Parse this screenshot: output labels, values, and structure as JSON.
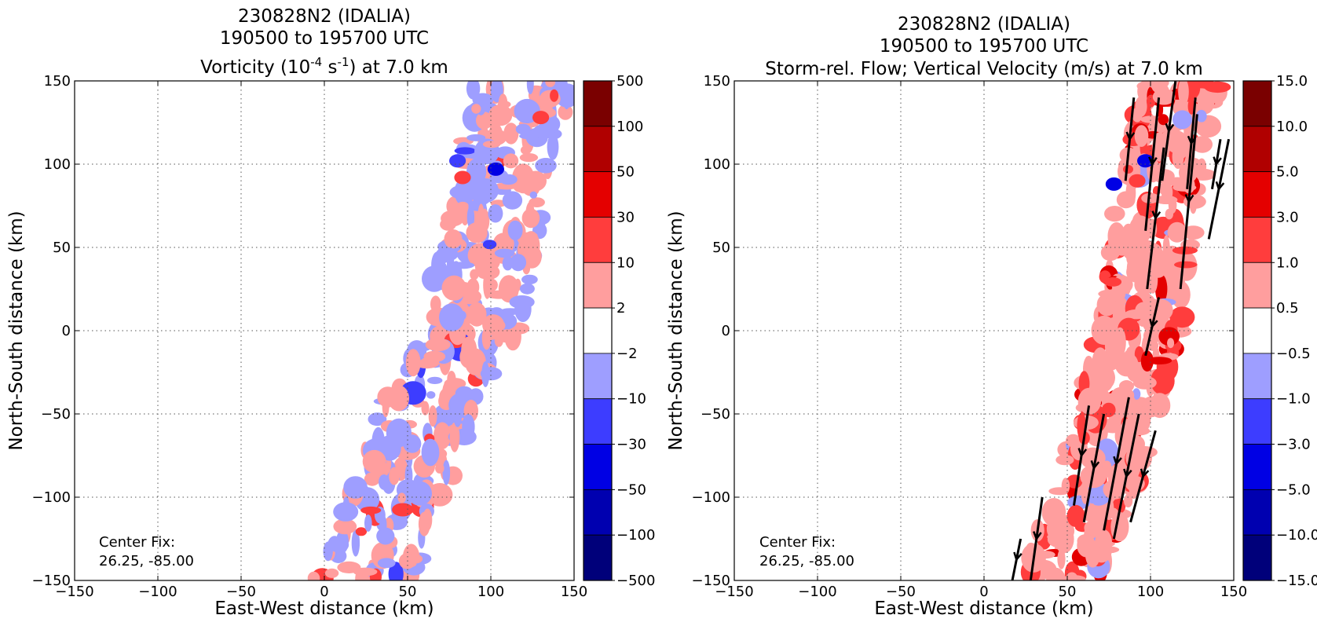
{
  "panels": [
    {
      "title_line1": "230828N2 (IDALIA)",
      "title_line2": "190500 to 195700 UTC",
      "title_line3_pre": "Vorticity (10",
      "title_line3_sup1": "-4",
      "title_line3_mid": " s",
      "title_line3_sup2": "-1",
      "title_line3_post": ") at 7.0 km",
      "xlabel": "East-West distance (km)",
      "ylabel": "North-South distance (km)",
      "annotation_line1": "Center Fix:",
      "annotation_line2": "26.25, -85.00",
      "colorbar_labels": [
        "500",
        "100",
        "50",
        "30",
        "10",
        "2",
        "−2",
        "−10",
        "−30",
        "−50",
        "−100",
        "−500"
      ]
    },
    {
      "title_line1": "230828N2 (IDALIA)",
      "title_line2": "190500 to 195700 UTC",
      "title_line3": "Storm-rel. Flow; Vertical Velocity (m/s) at 7.0 km",
      "xlabel": "East-West distance (km)",
      "ylabel": "North-South distance (km)",
      "annotation_line1": "Center Fix:",
      "annotation_line2": "26.25, -85.00",
      "colorbar_labels": [
        "15.0",
        "10.0",
        "5.0",
        "3.0",
        "1.0",
        "0.5",
        "−0.5",
        "−1.0",
        "−3.0",
        "−5.0",
        "−10.0",
        "−15.0"
      ]
    }
  ],
  "chart_data": [
    {
      "type": "heatmap",
      "variable": "vorticity",
      "units": "10^-4 s^-1",
      "level_km": 7.0,
      "xlim": [
        -150,
        150
      ],
      "ylim": [
        -150,
        150
      ],
      "xticks": [
        "−150",
        "−100",
        "−50",
        "0",
        "50",
        "100",
        "150"
      ],
      "yticks": [
        "150",
        "100",
        "50",
        "0",
        "−50",
        "−100",
        "−150"
      ],
      "xtick_values": [
        -150,
        -100,
        -50,
        0,
        50,
        100,
        150
      ],
      "ytick_values": [
        150,
        100,
        50,
        0,
        -50,
        -100,
        -150
      ],
      "grid": true,
      "colorbar_levels": [
        500,
        100,
        50,
        30,
        10,
        2,
        -2,
        -10,
        -30,
        -50,
        -100,
        -500
      ],
      "colorbar_colors": [
        "#7a0000",
        "#b00000",
        "#e40000",
        "#ff3d3d",
        "#ff9e9e",
        "#ffffff",
        "#9e9eff",
        "#3d3dff",
        "#0000e4",
        "#0000b0",
        "#00007a"
      ],
      "data_swath_centerline": [
        [
          22,
          -150
        ],
        [
          45,
          -100
        ],
        [
          60,
          -50
        ],
        [
          88,
          0
        ],
        [
          100,
          50
        ],
        [
          110,
          100
        ],
        [
          120,
          150
        ]
      ],
      "data_swath_halfwidth_km": 30,
      "features": [
        {
          "x": 130,
          "y": 128,
          "value": 30
        },
        {
          "x": 83,
          "y": 92,
          "value": 30
        },
        {
          "x": 103,
          "y": 97,
          "value": -30
        },
        {
          "x": 80,
          "y": 102,
          "value": -10
        }
      ]
    },
    {
      "type": "heatmap",
      "variable": "vertical velocity",
      "units": "m/s",
      "level_km": 7.0,
      "xlim": [
        -150,
        150
      ],
      "ylim": [
        -150,
        150
      ],
      "xticks": [
        "−150",
        "−100",
        "−50",
        "0",
        "50",
        "100",
        "150"
      ],
      "yticks": [
        "150",
        "100",
        "50",
        "0",
        "−50",
        "−100",
        "−150"
      ],
      "xtick_values": [
        -150,
        -100,
        -50,
        0,
        50,
        100,
        150
      ],
      "ytick_values": [
        150,
        100,
        50,
        0,
        -50,
        -100,
        -150
      ],
      "grid": true,
      "colorbar_levels": [
        15.0,
        10.0,
        5.0,
        3.0,
        1.0,
        0.5,
        -0.5,
        -1.0,
        -3.0,
        -5.0,
        -10.0,
        -15.0
      ],
      "colorbar_colors": [
        "#7a0000",
        "#b00000",
        "#e40000",
        "#ff3d3d",
        "#ff9e9e",
        "#ffffff",
        "#9e9eff",
        "#3d3dff",
        "#0000e4",
        "#0000b0",
        "#00007a"
      ],
      "data_swath_centerline": [
        [
          45,
          -150
        ],
        [
          65,
          -100
        ],
        [
          80,
          -50
        ],
        [
          93,
          0
        ],
        [
          100,
          50
        ],
        [
          108,
          100
        ],
        [
          120,
          150
        ]
      ],
      "data_swath_halfwidth_km": 25,
      "flow_vectors": [
        [
          [
            90,
            140
          ],
          [
            85,
            90
          ]
        ],
        [
          [
            115,
            150
          ],
          [
            107,
            90
          ]
        ],
        [
          [
            127,
            140
          ],
          [
            122,
            85
          ]
        ],
        [
          [
            142,
            115
          ],
          [
            137,
            85
          ]
        ],
        [
          [
            105,
            140
          ],
          [
            97,
            60
          ]
        ],
        [
          [
            128,
            130
          ],
          [
            118,
            25
          ]
        ],
        [
          [
            147,
            115
          ],
          [
            135,
            55
          ]
        ],
        [
          [
            108,
            110
          ],
          [
            98,
            25
          ]
        ],
        [
          [
            105,
            20
          ],
          [
            97,
            -15
          ]
        ],
        [
          [
            63,
            -45
          ],
          [
            54,
            -105
          ]
        ],
        [
          [
            72,
            -50
          ],
          [
            60,
            -115
          ]
        ],
        [
          [
            87,
            -40
          ],
          [
            72,
            -120
          ]
        ],
        [
          [
            93,
            -50
          ],
          [
            78,
            -125
          ]
        ],
        [
          [
            103,
            -60
          ],
          [
            88,
            -115
          ]
        ],
        [
          [
            35,
            -100
          ],
          [
            28,
            -150
          ]
        ],
        [
          [
            22,
            -125
          ],
          [
            17,
            -150
          ]
        ]
      ],
      "features": [
        {
          "x": 97,
          "y": 102,
          "value": -3.0
        },
        {
          "x": 78,
          "y": 88,
          "value": -3.0
        },
        {
          "x": 92,
          "y": 90,
          "value": 3.0
        }
      ]
    }
  ]
}
